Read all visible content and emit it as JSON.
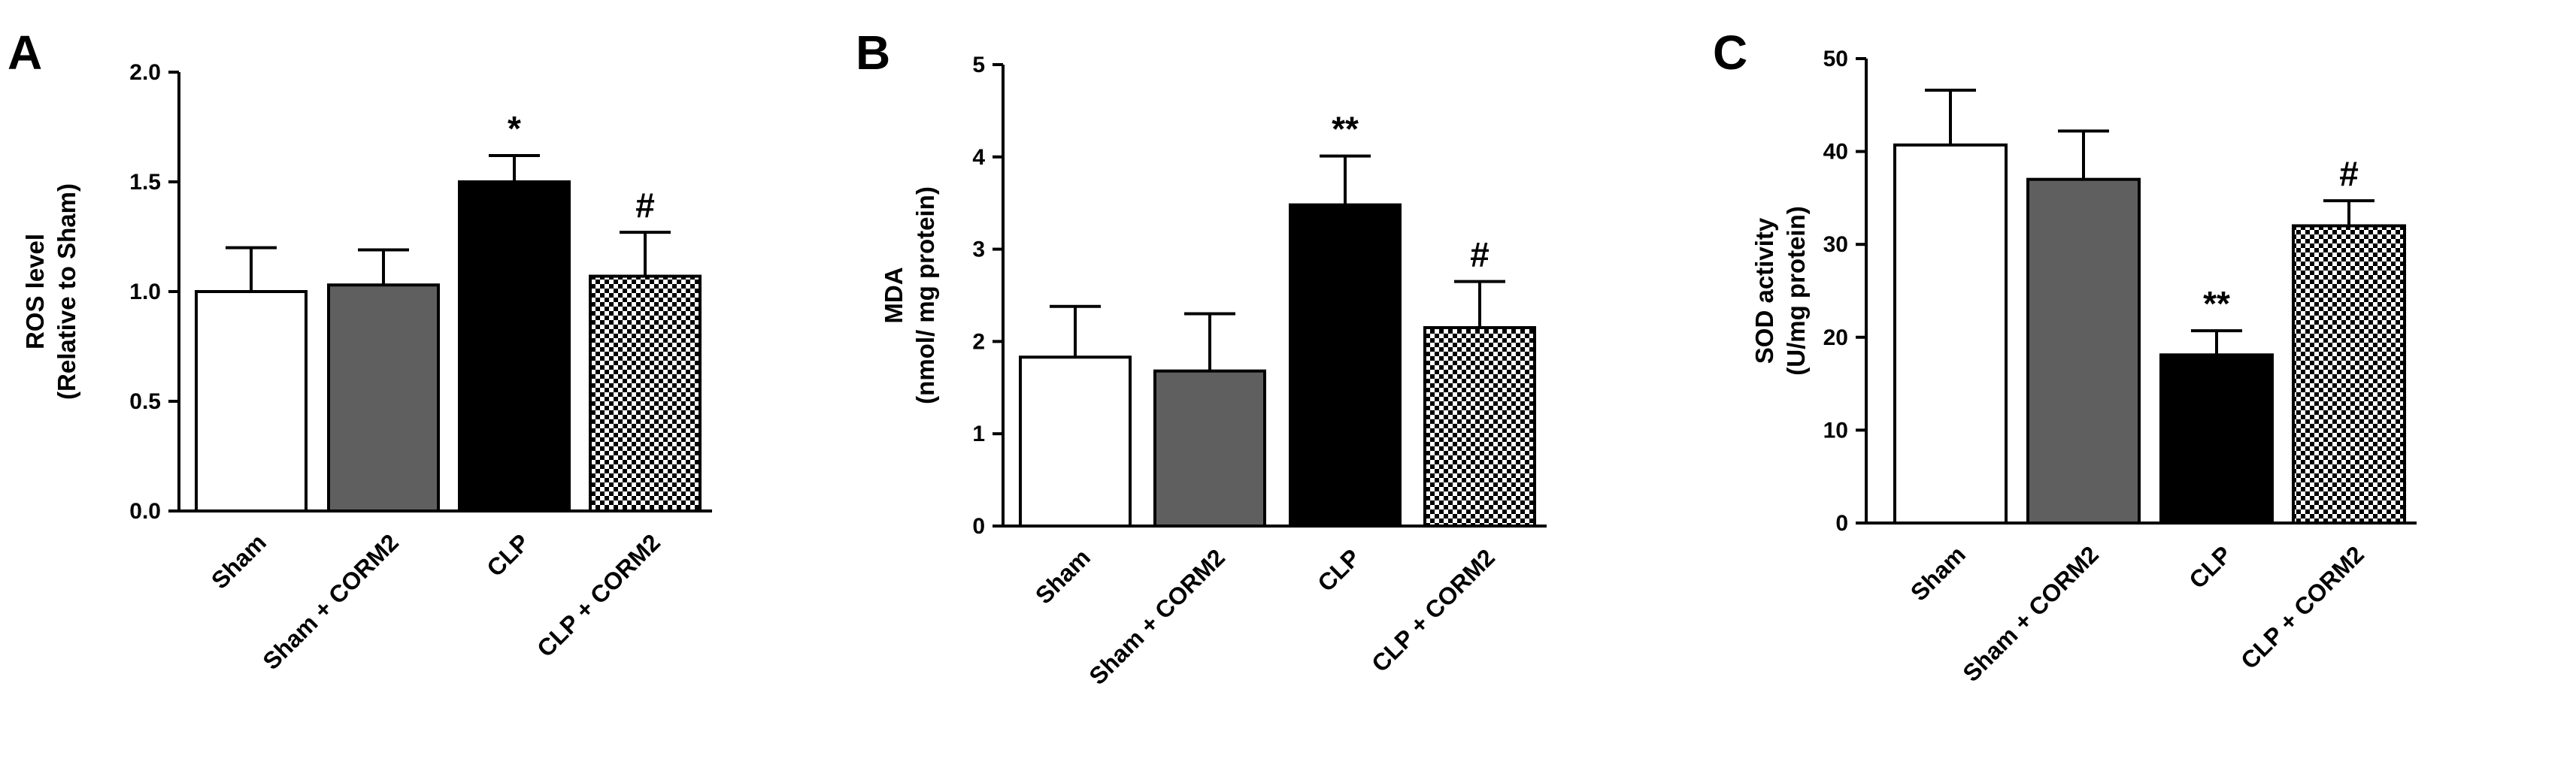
{
  "chart_data": [
    {
      "type": "bar",
      "panel": "A",
      "categories": [
        "Sham",
        "Sham + CORM2",
        "CLP",
        "CLP + CORM2"
      ],
      "values": [
        1.0,
        1.03,
        1.5,
        1.07
      ],
      "errors": [
        0.2,
        0.16,
        0.12,
        0.2
      ],
      "significance": [
        "",
        "",
        "*",
        "#"
      ],
      "ylabel": [
        "ROS level",
        "(Relative to Sham)"
      ],
      "ylim": [
        0,
        2.0
      ],
      "yticks": [
        0.0,
        0.5,
        1.0,
        1.5,
        2.0
      ],
      "ytick_labels": [
        "0.0",
        "0.5",
        "1.0",
        "1.5",
        "2.0"
      ],
      "bar_fills": [
        "white",
        "grey",
        "black",
        "checker"
      ]
    },
    {
      "type": "bar",
      "panel": "B",
      "categories": [
        "Sham",
        "Sham + CORM2",
        "CLP",
        "CLP + CORM2"
      ],
      "values": [
        1.83,
        1.68,
        3.48,
        2.15
      ],
      "errors": [
        0.55,
        0.62,
        0.53,
        0.5
      ],
      "significance": [
        "",
        "",
        "**",
        "#"
      ],
      "ylabel": [
        "MDA",
        "(nmol/ mg protein)"
      ],
      "ylim": [
        0,
        5
      ],
      "yticks": [
        0,
        1,
        2,
        3,
        4,
        5
      ],
      "ytick_labels": [
        "0",
        "1",
        "2",
        "3",
        "4",
        "5"
      ],
      "bar_fills": [
        "white",
        "grey",
        "black",
        "checker"
      ]
    },
    {
      "type": "bar",
      "panel": "C",
      "categories": [
        "Sham",
        "Sham + CORM2",
        "CLP",
        "CLP + CORM2"
      ],
      "values": [
        40.7,
        37.0,
        18.1,
        32.0
      ],
      "errors": [
        5.9,
        5.2,
        2.6,
        2.7
      ],
      "significance": [
        "",
        "",
        "**",
        "#"
      ],
      "ylabel": [
        "SOD activity",
        "(U/mg protein)"
      ],
      "ylim": [
        0,
        50
      ],
      "yticks": [
        0,
        10,
        20,
        30,
        40,
        50
      ],
      "ytick_labels": [
        "0",
        "10",
        "20",
        "30",
        "40",
        "50"
      ],
      "bar_fills": [
        "white",
        "grey",
        "black",
        "checker"
      ]
    }
  ],
  "colors": {
    "grey": "#5f5f5f",
    "black": "#000000",
    "white": "#ffffff"
  }
}
